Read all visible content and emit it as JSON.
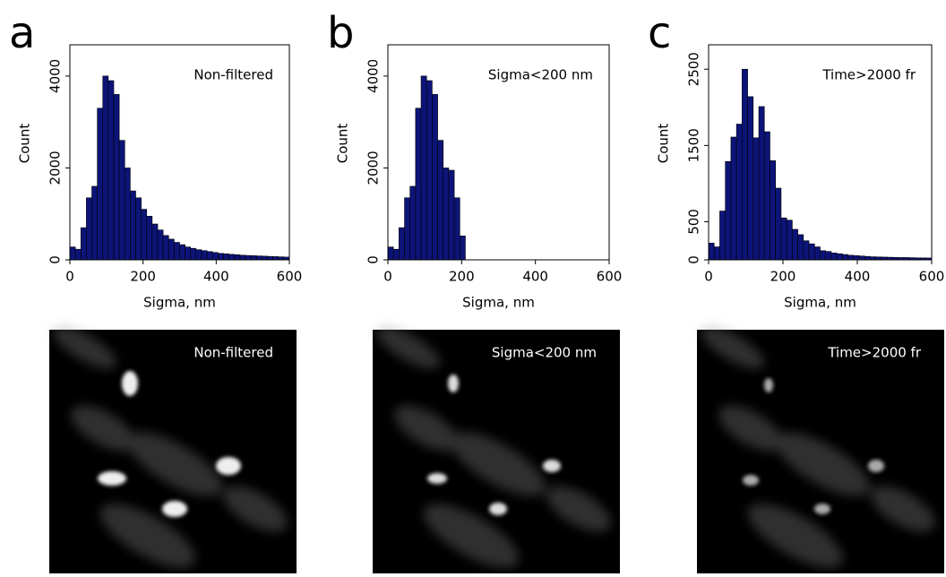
{
  "chart_data": [
    {
      "type": "histogram",
      "panel_label": "a",
      "annotation": "Non-filtered",
      "xlabel": "Sigma, nm",
      "ylabel": "Count",
      "color": "#0c1478",
      "bins": [
        0,
        15,
        30,
        45,
        60,
        75,
        90,
        105,
        120,
        135,
        150,
        165,
        180,
        195,
        210,
        225,
        240,
        255,
        270,
        285,
        300,
        315,
        330,
        345,
        360,
        375,
        390,
        405,
        420,
        435,
        450,
        465,
        480,
        495,
        510,
        525,
        540,
        555,
        570,
        585,
        600
      ],
      "values": [
        280,
        230,
        700,
        1350,
        1600,
        3300,
        4000,
        3900,
        3600,
        2600,
        2000,
        1500,
        1350,
        1100,
        950,
        780,
        650,
        530,
        450,
        380,
        330,
        280,
        250,
        220,
        200,
        180,
        160,
        140,
        130,
        120,
        110,
        100,
        95,
        90,
        85,
        80,
        75,
        70,
        65,
        60
      ],
      "xlim": [
        0,
        600
      ],
      "xticks": [
        0,
        200,
        400,
        600
      ],
      "ylim": [
        0,
        4680
      ],
      "yticks": [
        0,
        2000,
        4000
      ]
    },
    {
      "type": "histogram",
      "panel_label": "b",
      "annotation": "Sigma<200 nm",
      "xlabel": "Sigma, nm",
      "ylabel": "Count",
      "color": "#0c1478",
      "bins": [
        0,
        15,
        30,
        45,
        60,
        75,
        90,
        105,
        120,
        135,
        150,
        165,
        180,
        195,
        210
      ],
      "values": [
        280,
        230,
        700,
        1350,
        1600,
        3300,
        4000,
        3900,
        3600,
        2600,
        2000,
        1950,
        1350,
        520
      ],
      "xlim": [
        0,
        600
      ],
      "xticks": [
        0,
        200,
        400,
        600
      ],
      "ylim": [
        0,
        4680
      ],
      "yticks": [
        0,
        2000,
        4000
      ]
    },
    {
      "type": "histogram",
      "panel_label": "c",
      "annotation": "Time>2000 fr",
      "xlabel": "Sigma, nm",
      "ylabel": "Count",
      "color": "#0c1478",
      "bins": [
        0,
        15,
        30,
        45,
        60,
        75,
        90,
        105,
        120,
        135,
        150,
        165,
        180,
        195,
        210,
        225,
        240,
        255,
        270,
        285,
        300,
        315,
        330,
        345,
        360,
        375,
        390,
        405,
        420,
        435,
        450,
        465,
        480,
        495,
        510,
        525,
        540,
        555,
        570,
        585,
        600
      ],
      "values": [
        220,
        170,
        640,
        1290,
        1610,
        1780,
        2500,
        2140,
        1600,
        2010,
        1680,
        1300,
        940,
        550,
        520,
        400,
        330,
        250,
        210,
        170,
        120,
        110,
        90,
        80,
        70,
        60,
        55,
        50,
        45,
        40,
        38,
        36,
        34,
        32,
        30,
        30,
        28,
        26,
        25,
        24
      ],
      "xlim": [
        0,
        600
      ],
      "xticks": [
        0,
        200,
        400,
        600
      ],
      "ylim": [
        0,
        2820
      ],
      "yticks": [
        0,
        500,
        1500,
        2500
      ]
    }
  ],
  "images": [
    {
      "label": "Non-filtered"
    },
    {
      "label": "Sigma<200 nm"
    },
    {
      "label": "Time>2000 fr"
    }
  ]
}
